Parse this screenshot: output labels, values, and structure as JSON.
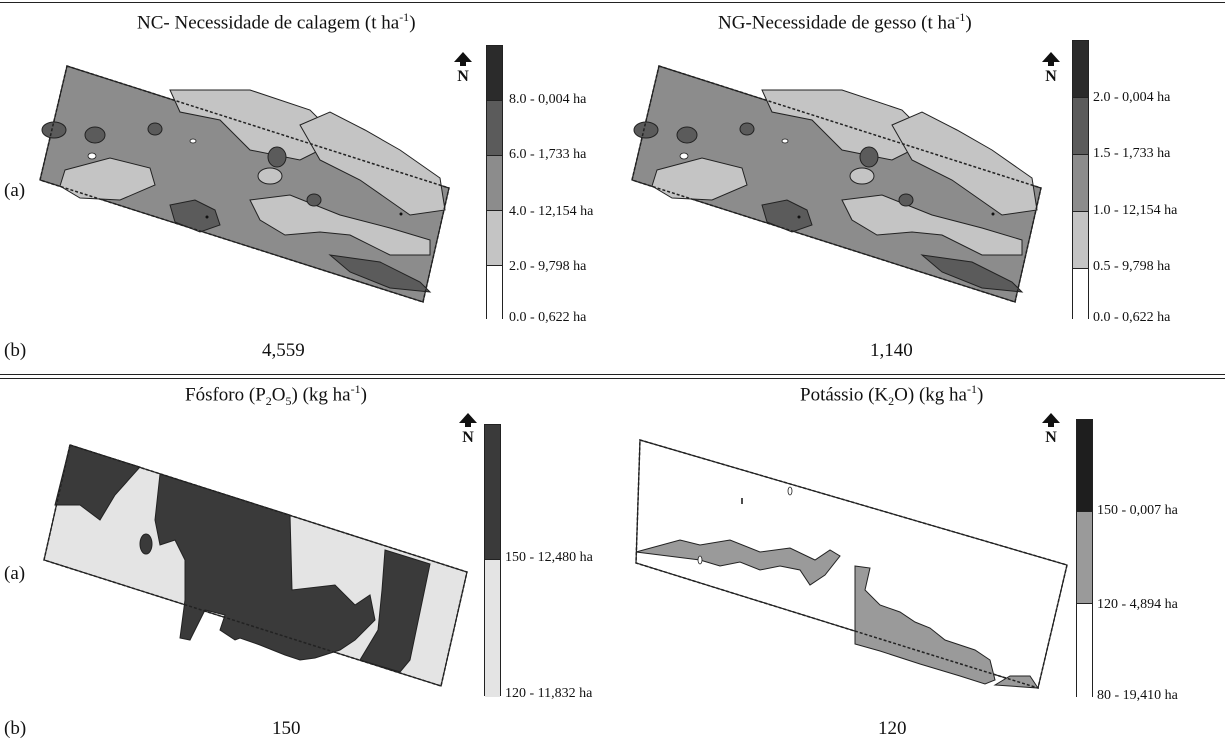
{
  "panels": {
    "nc": {
      "title": "NC- Necessidade de calagem (t ha",
      "title_sup": "-1",
      "title_end": ")",
      "value": "4,559",
      "legend": [
        {
          "label": "8.0 -  0,004 ha",
          "color": "#2b2b2b"
        },
        {
          "label": "6.0 -  1,733 ha",
          "color": "#5b5b5b"
        },
        {
          "label": "4.0 -  12,154 ha",
          "color": "#8c8c8c"
        },
        {
          "label": "2.0 -  9,798 ha",
          "color": "#c4c4c4"
        },
        {
          "label": "0.0 -  0,622 ha",
          "color": "#ffffff"
        }
      ]
    },
    "ng": {
      "title": "NG-Necessidade de gesso (t ha",
      "title_sup": "-1",
      "title_end": ")",
      "value": "1,140",
      "legend": [
        {
          "label": "2.0 -  0,004 ha",
          "color": "#2b2b2b"
        },
        {
          "label": "1.5 -  1,733 ha",
          "color": "#5b5b5b"
        },
        {
          "label": "1.0 -  12,154 ha",
          "color": "#8c8c8c"
        },
        {
          "label": "0.5 -  9,798 ha",
          "color": "#c4c4c4"
        },
        {
          "label": "0.0 -  0,622 ha",
          "color": "#ffffff"
        }
      ]
    },
    "p": {
      "title_a": "Fósforo (P",
      "title_sub1": "2",
      "title_b": "O",
      "title_sub2": "5",
      "title_c": ") (kg ha",
      "title_sup": "-1",
      "title_end": ")",
      "value": "150",
      "legend": [
        {
          "label": "150 - 12,480 ha",
          "color": "#3a3a3a"
        },
        {
          "label": "120 - 11,832 ha",
          "color": "#e4e4e4"
        }
      ]
    },
    "k": {
      "title_a": "Potássio (K",
      "title_sub1": "2",
      "title_b": "O) (kg ha",
      "title_sup": "-1",
      "title_end": ")",
      "value": "120",
      "legend": [
        {
          "label": "150 -  0,007 ha",
          "color": "#1e1e1e"
        },
        {
          "label": "120 -  4,894 ha",
          "color": "#9a9a9a"
        },
        {
          "label": "80 -  19,410 ha",
          "color": "#ffffff"
        }
      ]
    }
  },
  "row_labels": {
    "a": "(a)",
    "b": "(b)"
  },
  "north_symbol": "N",
  "icons": {
    "north": "north-arrow-icon"
  }
}
